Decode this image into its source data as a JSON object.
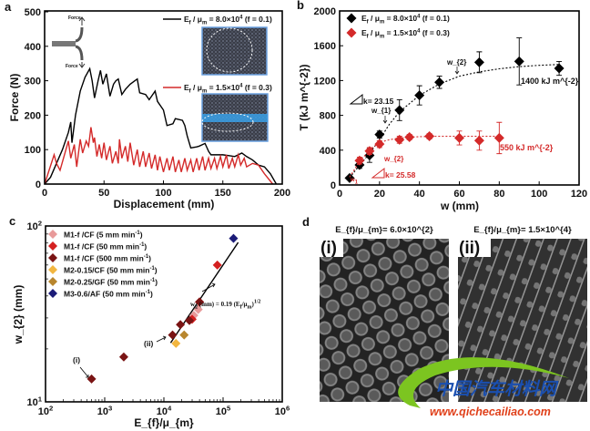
{
  "figure": {
    "panel_labels": [
      "a",
      "b",
      "c",
      "d"
    ],
    "watermark": {
      "title": "中国汽车材料网",
      "url": "www.qichecailiao.com",
      "colors": {
        "swoosh": "#7cc520",
        "title": "#1a4fb0",
        "url": "#e0401a"
      }
    }
  },
  "chart_data": [
    {
      "id": "a",
      "type": "line",
      "xlabel": "Displacement (mm)",
      "ylabel": "Force (N)",
      "xlim": [
        0,
        200
      ],
      "ylim": [
        0,
        500
      ],
      "xticks": [
        0,
        50,
        100,
        150,
        200
      ],
      "yticks": [
        0,
        100,
        200,
        300,
        400,
        500
      ],
      "inset_labels": {
        "top": "Force",
        "bottom": "Force"
      },
      "series": [
        {
          "name": "E_{f} / μ_{m} = 8.0×10^{4} (f = 0.1)",
          "color": "#000000",
          "x": [
            0,
            5,
            10,
            15,
            20,
            22,
            23,
            26,
            30,
            34,
            38,
            40,
            42,
            45,
            47,
            49,
            52,
            55,
            58,
            60,
            62,
            65,
            68,
            72,
            76,
            78,
            80,
            85,
            88,
            90,
            93,
            95,
            100,
            103,
            108,
            110,
            116,
            118,
            120,
            123,
            128,
            130,
            135,
            138,
            140,
            150,
            160,
            166,
            170,
            175,
            180,
            185,
            190,
            195
          ],
          "y": [
            0,
            20,
            60,
            100,
            150,
            180,
            120,
            200,
            270,
            310,
            335,
            300,
            250,
            300,
            330,
            290,
            320,
            255,
            290,
            300,
            305,
            260,
            275,
            290,
            300,
            305,
            265,
            260,
            245,
            255,
            270,
            240,
            215,
            170,
            175,
            190,
            185,
            170,
            140,
            105,
            108,
            110,
            118,
            95,
            85,
            85,
            80,
            90,
            80,
            70,
            55,
            50,
            30,
            0
          ]
        },
        {
          "name": "E_{f} / μ_{m} = 1.5×10^{4} (f = 0.3)",
          "color": "#d42a2a",
          "x": [
            0,
            8,
            10,
            13,
            20,
            22,
            25,
            27,
            30,
            32,
            35,
            37,
            39,
            41,
            42,
            44,
            46,
            48,
            50,
            52,
            55,
            57,
            60,
            62,
            63,
            65,
            68,
            70,
            72,
            75,
            78,
            80,
            83,
            85,
            88,
            90,
            93,
            95,
            97,
            100,
            103,
            105,
            108,
            110,
            113,
            115,
            118,
            120,
            123,
            125,
            128,
            130,
            133,
            135,
            138,
            140,
            143,
            145,
            148,
            150,
            153,
            155,
            158,
            160,
            163,
            165,
            168,
            170,
            175,
            180,
            185,
            192
          ],
          "y": [
            0,
            85,
            60,
            40,
            125,
            75,
            115,
            50,
            130,
            90,
            125,
            110,
            165,
            120,
            135,
            80,
            115,
            75,
            120,
            70,
            110,
            60,
            95,
            60,
            130,
            75,
            110,
            65,
            120,
            55,
            100,
            50,
            95,
            50,
            90,
            45,
            85,
            40,
            80,
            35,
            75,
            40,
            80,
            35,
            70,
            35,
            75,
            40,
            70,
            35,
            75,
            40,
            80,
            40,
            75,
            45,
            75,
            45,
            80,
            50,
            85,
            45,
            75,
            50,
            85,
            55,
            75,
            50,
            60,
            55,
            30,
            0
          ]
        }
      ]
    },
    {
      "id": "b",
      "type": "scatter",
      "xlabel": "w (mm)",
      "ylabel": "T (kJ m^{-2})",
      "xlim": [
        0,
        120
      ],
      "ylim": [
        0,
        2000
      ],
      "xticks": [
        0,
        20,
        40,
        60,
        80,
        100,
        120
      ],
      "yticks": [
        0,
        400,
        800,
        1200,
        1600,
        2000
      ],
      "series": [
        {
          "name": "E_{f} / μ_{m} = 8.0×10^{4} (f = 0.1)",
          "color": "#000000",
          "x": [
            5,
            10,
            15,
            20,
            30,
            40,
            50,
            70,
            90,
            110
          ],
          "y": [
            80,
            230,
            340,
            580,
            860,
            1030,
            1180,
            1410,
            1420,
            1340
          ],
          "err": [
            20,
            40,
            80,
            40,
            120,
            110,
            70,
            120,
            270,
            80
          ],
          "fit_x": [
            5,
            10,
            15,
            20,
            25,
            30,
            40,
            50,
            60,
            70,
            80,
            90,
            100,
            110
          ],
          "fit_y": [
            80,
            230,
            360,
            520,
            700,
            840,
            1030,
            1160,
            1250,
            1300,
            1335,
            1360,
            1375,
            1385
          ]
        },
        {
          "name": "E_{f} / μ_{m} = 1.5×10^{4} (f = 0.3)",
          "color": "#d42a2a",
          "x": [
            10,
            15,
            20,
            30,
            35,
            45,
            60,
            70,
            80
          ],
          "y": [
            280,
            390,
            470,
            520,
            550,
            560,
            540,
            510,
            540
          ],
          "err": [
            40,
            40,
            40,
            40,
            30,
            30,
            80,
            110,
            180
          ],
          "fit_x": [
            5,
            10,
            15,
            20,
            25,
            30,
            40,
            50,
            60,
            70,
            80
          ],
          "fit_y": [
            90,
            270,
            400,
            490,
            520,
            540,
            555,
            560,
            560,
            560,
            560
          ]
        }
      ],
      "annotations": {
        "k1": "k= 23.15",
        "k2": "k= 25.58",
        "plateau1": "1400 kJ m^{-2}",
        "plateau2": "550 kJ m^{-2}",
        "w1": "w_{1}",
        "w2": "w_{2}"
      }
    },
    {
      "id": "c",
      "type": "scatter",
      "xscale": "log",
      "yscale": "log",
      "xlabel": "E_{f}/μ_{m}",
      "ylabel": "w_{2} (mm)",
      "xlim": [
        100,
        1000000
      ],
      "ylim": [
        10,
        100
      ],
      "xticks": [
        "10^{2}",
        "10^{3}",
        "10^{4}",
        "10^{5}",
        "10^{6}"
      ],
      "yticks": [
        "10^{1}",
        "10^{2}"
      ],
      "series": [
        {
          "name": "M1-f /CF (5 mm min^{-1})",
          "color": "#e89a9a",
          "x": [
            32000,
            38000
          ],
          "y": [
            31,
            33.5
          ]
        },
        {
          "name": "M1-f /CF (50 mm min^{-1})",
          "color": "#d42020",
          "x": [
            30000,
            80000,
            40000
          ],
          "y": [
            29.5,
            60,
            37
          ]
        },
        {
          "name": "M1-f /CF (500 mm min^{-1})",
          "color": "#7a1414",
          "x": [
            600,
            2100,
            14000,
            19000,
            27000,
            40000
          ],
          "y": [
            13.5,
            18,
            24,
            27.5,
            29,
            37
          ]
        },
        {
          "name": "M2-0.15/CF (50 mm min^{-1})",
          "color": "#f2b640",
          "x": [
            16000
          ],
          "y": [
            21.5
          ]
        },
        {
          "name": "M2-0.25/GF (50 mm min^{-1})",
          "color": "#b8862e",
          "x": [
            22000
          ],
          "y": [
            24
          ]
        },
        {
          "name": "M3-0.6/AF (50 mm min^{-1})",
          "color": "#1c1c78",
          "x": [
            150000
          ],
          "y": [
            85
          ]
        }
      ],
      "fit": {
        "equation": "w_{2} (mm) = 0.19 (E_{f}/μ_{m})^{1/2}",
        "coef": 0.19,
        "exponent": 0.5,
        "x_range": [
          13000,
          180000
        ]
      },
      "annotations": {
        "i": "(i)",
        "ii": "(ii)"
      }
    }
  ],
  "panel_d": {
    "images": [
      {
        "title": "E_{f}/μ_{m}= 6.0×10^{2}",
        "label": "(i)"
      },
      {
        "title": "E_{f}/μ_{m}= 1.5×10^{4}",
        "label": "(ii)"
      }
    ]
  }
}
